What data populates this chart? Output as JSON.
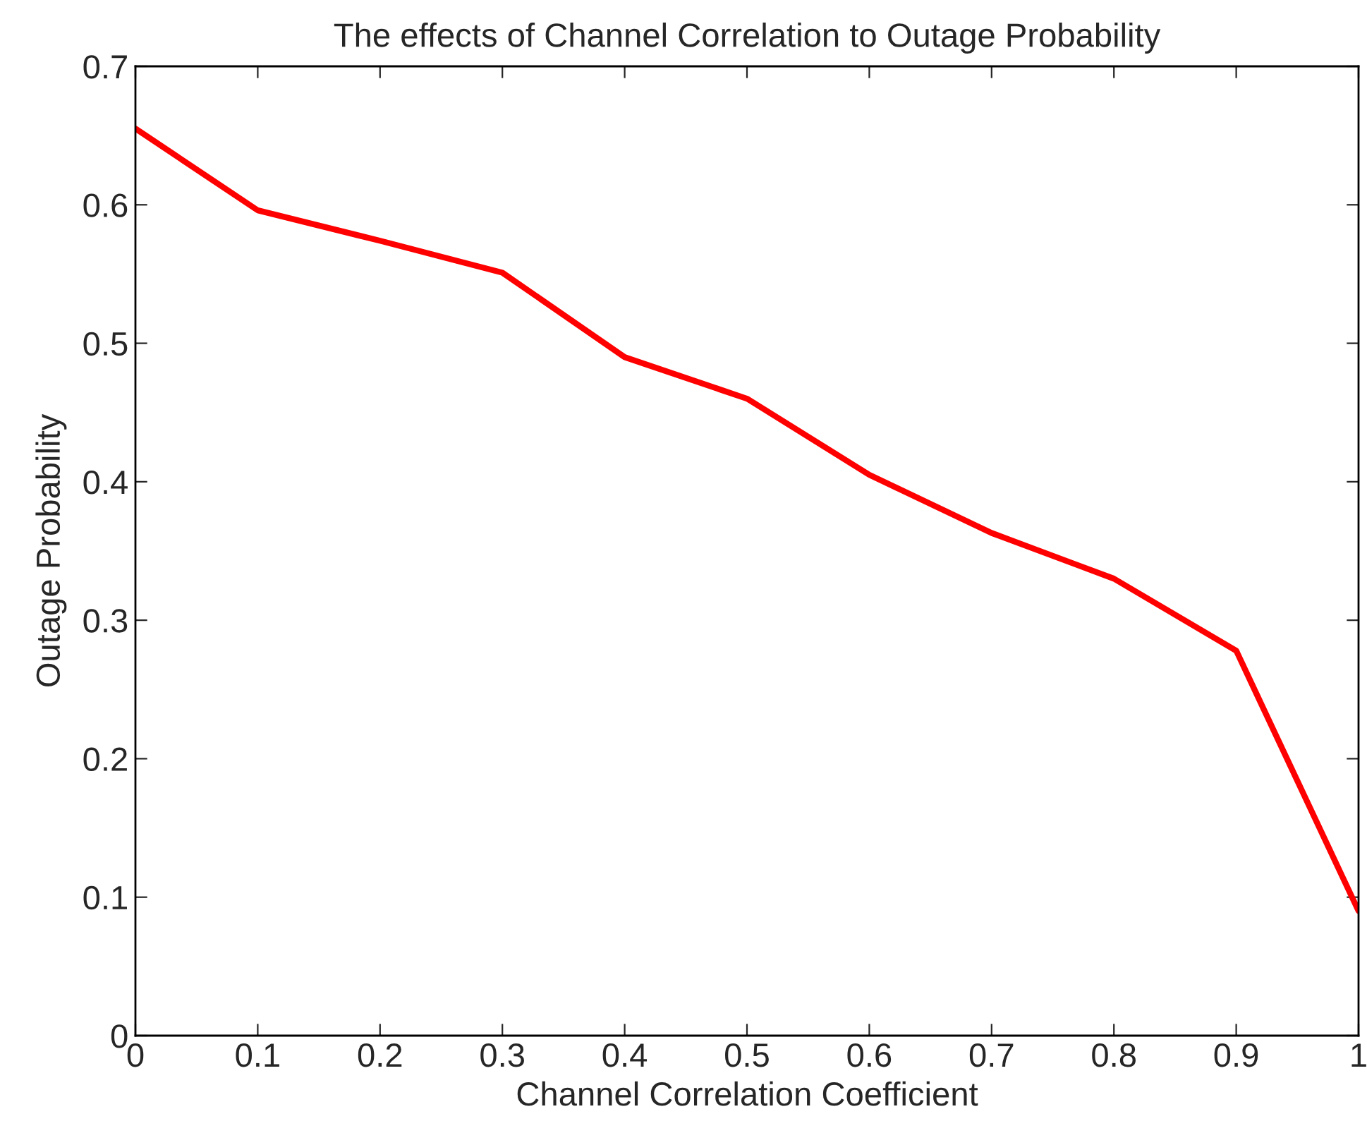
{
  "chart_data": {
    "type": "line",
    "title": "The effects of Channel Correlation to Outage Probability",
    "xlabel": "Channel Correlation Coefficient",
    "ylabel": "Outage Probability",
    "x": [
      0,
      0.1,
      0.2,
      0.3,
      0.4,
      0.5,
      0.6,
      0.7,
      0.8,
      0.9,
      1
    ],
    "series": [
      {
        "color": "#ff0000",
        "values": [
          0.655,
          0.596,
          0.574,
          0.551,
          0.49,
          0.46,
          0.405,
          0.363,
          0.33,
          0.278,
          0.09
        ]
      }
    ],
    "xlim": [
      0,
      1
    ],
    "ylim": [
      0,
      0.7
    ],
    "xticks": [
      0,
      0.1,
      0.2,
      0.3,
      0.4,
      0.5,
      0.6,
      0.7,
      0.8,
      0.9,
      {
        "value": 1,
        "label": "1"
      }
    ],
    "yticks": [
      0,
      0.1,
      0.2,
      0.3,
      0.4,
      0.5,
      0.6,
      0.7
    ],
    "grid": false,
    "legend": false,
    "marker": "none",
    "line_style": "solid"
  }
}
